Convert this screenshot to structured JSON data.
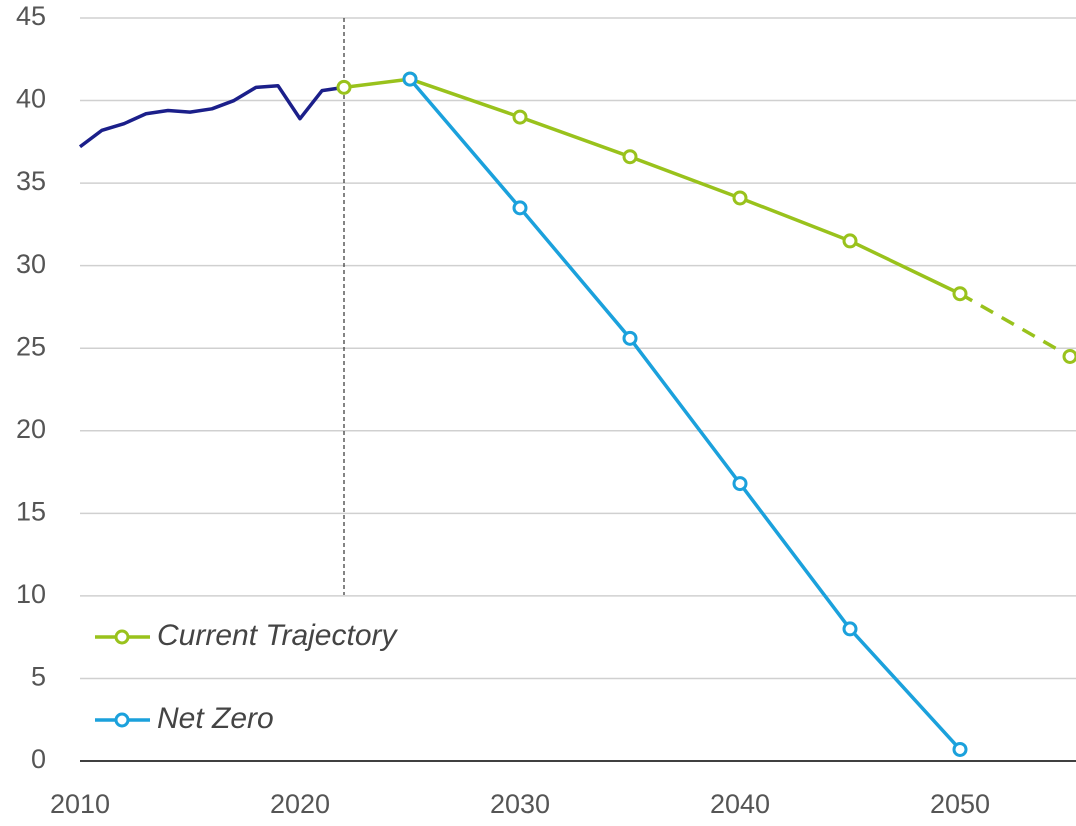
{
  "chart_data": {
    "type": "line",
    "xlim": [
      2010,
      2055
    ],
    "xticks": [
      2010,
      2020,
      2030,
      2040,
      2050
    ],
    "ylim": [
      0,
      45
    ],
    "yticks": [
      0,
      5,
      10,
      15,
      20,
      25,
      30,
      35,
      40,
      45
    ],
    "grid": true,
    "legend": "lower left",
    "vline": 2022,
    "series": [
      {
        "color": "#1b1f8a",
        "markers": false,
        "x": [
          2010,
          2011,
          2012,
          2013,
          2014,
          2015,
          2016,
          2017,
          2018,
          2019,
          2020,
          2021,
          2022
        ],
        "values": [
          37.2,
          38.2,
          38.6,
          39.2,
          39.4,
          39.3,
          39.5,
          40.0,
          40.8,
          40.9,
          38.9,
          40.6,
          40.8
        ]
      },
      {
        "name": "Current Trajectory",
        "color": "#99c21c",
        "markers": true,
        "dash_after": 2050,
        "x": [
          2022,
          2025,
          2030,
          2035,
          2040,
          2045,
          2050,
          2055
        ],
        "values": [
          40.8,
          41.3,
          39.0,
          36.6,
          34.1,
          31.5,
          28.3,
          24.5
        ]
      },
      {
        "name": "Net Zero",
        "color": "#1ba1dc",
        "markers": true,
        "x": [
          2025,
          2030,
          2035,
          2040,
          2045,
          2050
        ],
        "values": [
          41.3,
          33.5,
          25.6,
          16.8,
          8.0,
          0.7
        ]
      }
    ]
  }
}
